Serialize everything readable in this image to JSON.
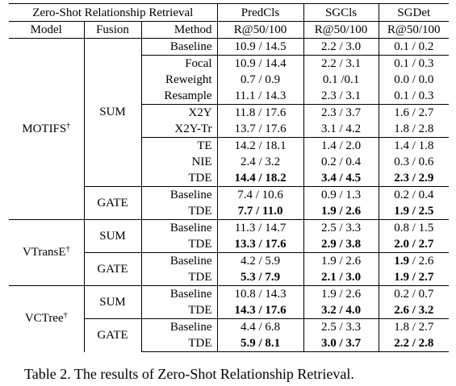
{
  "header": {
    "title": "Zero-Shot Relationship Retrieval",
    "predcls": "PredCls",
    "sgcls": "SGCls",
    "sgdet": "SGDet",
    "col_model": "Model",
    "col_fusion": "Fusion",
    "col_method": "Method",
    "metric_pred": "R@50/100",
    "metric_sg": "R@50/100",
    "metric_det": "R@50/100"
  },
  "models": {
    "motifs": "MOTIFS",
    "vtranse": "VTransE",
    "vctree": "VCTree",
    "dagger": "†"
  },
  "fusion": {
    "sum": "SUM",
    "gate": "GATE"
  },
  "rows": [
    {
      "method": "Baseline",
      "pred": "10.9 / 14.5",
      "sg": "2.2 / 3.0",
      "det": "0.1 / 0.2"
    },
    {
      "method": "Focal",
      "pred": "10.9 / 14.4",
      "sg": "2.2 / 3.1",
      "det": "0.1 / 0.3"
    },
    {
      "method": "Reweight",
      "pred": "0.7 / 0.9",
      "sg": "0.1 /0.1",
      "det": "0.0 / 0.0"
    },
    {
      "method": "Resample",
      "pred": "11.1 / 14.3",
      "sg": "2.3 / 3.1",
      "det": "0.1 / 0.3"
    },
    {
      "method": "X2Y",
      "pred": "11.8 / 17.6",
      "sg": "2.3 / 3.7",
      "det": "1.6 / 2.7"
    },
    {
      "method": "X2Y-Tr",
      "pred": "13.7 / 17.6",
      "sg": "3.1 / 4.2",
      "det": "1.8 / 2.8"
    },
    {
      "method": "TE",
      "pred": "14.2 / 18.1",
      "sg": "1.4 / 2.0",
      "det": "1.4 / 1.8"
    },
    {
      "method": "NIE",
      "pred": "2.4 / 3.2",
      "sg": "0.2 / 0.4",
      "det": "0.3 / 0.6"
    },
    {
      "method": "TDE",
      "pred": "14.4 / 18.2",
      "sg": "3.4 / 4.5",
      "det": "2.3 / 2.9"
    },
    {
      "method": "Baseline",
      "pred": "7.4 / 10.6",
      "sg": "0.9 / 1.3",
      "det": "0.2 / 0.4"
    },
    {
      "method": "TDE",
      "pred": "7.7 / 11.0",
      "sg": "1.9 / 2.6",
      "det": "1.9 / 2.5"
    },
    {
      "method": "Baseline",
      "pred": "11.3 / 14.7",
      "sg": "2.5 / 3.3",
      "det": "0.8 / 1.5"
    },
    {
      "method": "TDE",
      "pred": "13.3 / 17.6",
      "sg": "2.9 / 3.8",
      "det": "2.0 / 2.7"
    },
    {
      "method": "Baseline",
      "pred": "4.2 / 5.9",
      "sg": "1.9 / 2.6",
      "det_a": "1.9",
      "det_b": " / 2.6"
    },
    {
      "method": "TDE",
      "pred": "5.3 / 7.9",
      "sg": "2.1 / 3.0",
      "det": "1.9 / 2.7"
    },
    {
      "method": "Baseline",
      "pred": "10.8 / 14.3",
      "sg": "1.9 / 2.6",
      "det": "0.2 / 0.7"
    },
    {
      "method": "TDE",
      "pred": "14.3 / 17.6",
      "sg": "3.2 / 4.0",
      "det": "2.6 / 3.2"
    },
    {
      "method": "Baseline",
      "pred": "4.4 / 6.8",
      "sg": "2.5 / 3.3",
      "det": "1.8 / 2.7"
    },
    {
      "method": "TDE",
      "pred": "5.9 / 8.1",
      "sg": "3.0 / 3.7",
      "det": "2.2 / 2.8"
    }
  ],
  "caption": "Table 2. The results of Zero-Shot Relationship Retrieval."
}
